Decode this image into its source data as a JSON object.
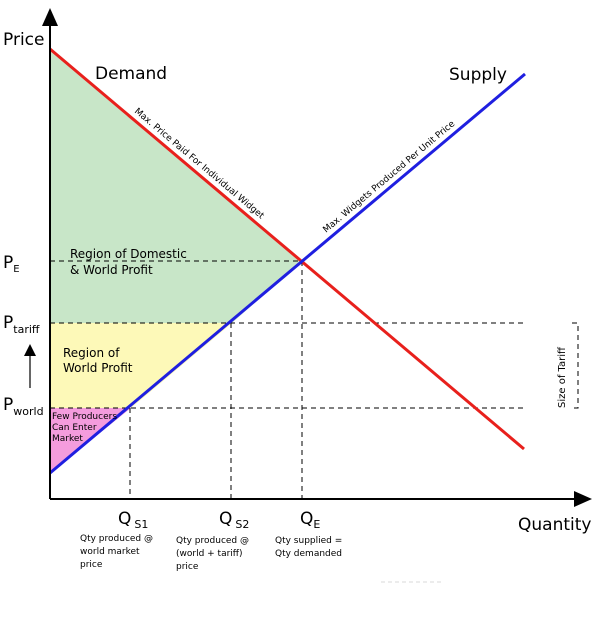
{
  "axes": {
    "y_label": "Price",
    "x_label": "Quantity"
  },
  "curves": {
    "demand": {
      "label": "Demand",
      "color": "#e8201c",
      "note": "Max. Price Paid For Individual Widget"
    },
    "supply": {
      "label": "Supply",
      "color": "#1f1fe0",
      "note": "Max. Widgets Produced Per Unit Price"
    }
  },
  "price_levels": {
    "pe": {
      "main": "P",
      "sub": "E"
    },
    "ptariff": {
      "main": "P",
      "sub": "tariff"
    },
    "pworld": {
      "main": "P",
      "sub": "world"
    }
  },
  "quantities": {
    "qs1": {
      "main": "Q",
      "sub": "S1",
      "note_lines": [
        "Qty produced @",
        "world market",
        "price"
      ]
    },
    "qs2": {
      "main": "Q",
      "sub": "S2",
      "note_lines": [
        "Qty produced @",
        "(world + tariff)",
        "price"
      ]
    },
    "qe": {
      "main": "Q",
      "sub": "E",
      "note_lines": [
        "Qty supplied =",
        "Qty demanded"
      ]
    }
  },
  "regions": {
    "domestic_world_profit": {
      "lines": [
        "Region of Domestic",
        "& World Profit"
      ],
      "color": "#c8e6c8"
    },
    "world_profit": {
      "lines": [
        "Region of",
        "World Profit"
      ],
      "color": "#fdf9b8"
    },
    "few_producers": {
      "lines": [
        "Few Producers",
        "Can Enter",
        "Market"
      ],
      "color": "#f49cdd"
    }
  },
  "tariff_size_label": "Size of Tariff"
}
